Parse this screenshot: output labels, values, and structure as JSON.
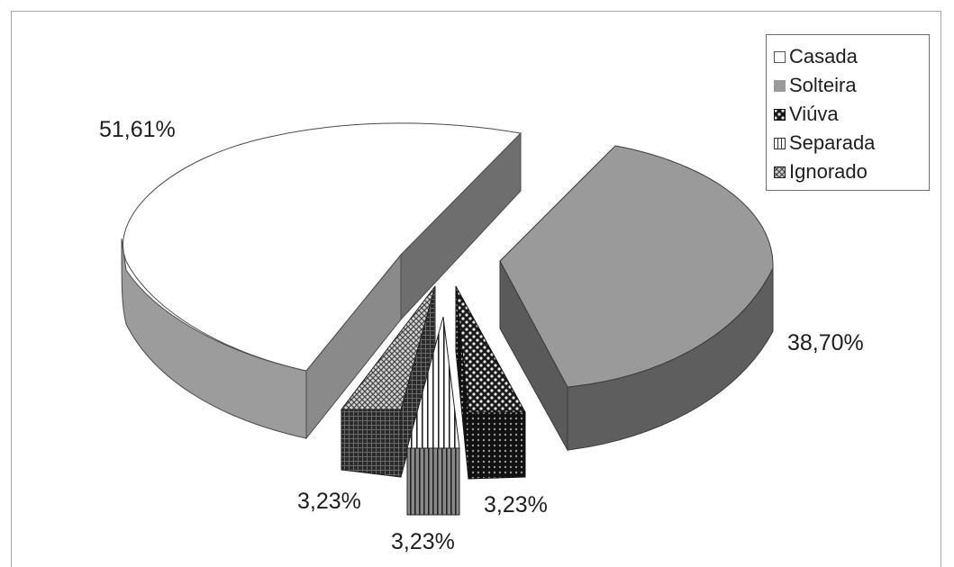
{
  "chart_data": {
    "type": "pie",
    "title": "",
    "slices": [
      {
        "label": "Casada",
        "value": 51.61,
        "value_label": "51,61%",
        "color": "#ffffff",
        "pattern": "solid-white"
      },
      {
        "label": "Solteira",
        "value": 38.7,
        "value_label": "38,70%",
        "color": "#9a9a9a",
        "pattern": "solid-gray"
      },
      {
        "label": "Viúva",
        "value": 3.23,
        "value_label": "3,23%",
        "color": "#2a2a2a",
        "pattern": "dark-checker"
      },
      {
        "label": "Separada",
        "value": 3.23,
        "value_label": "3,23%",
        "color": "#ffffff",
        "pattern": "vertical-lines"
      },
      {
        "label": "Ignorado",
        "value": 3.23,
        "value_label": "3,23%",
        "color": "#555555",
        "pattern": "dense-grid"
      }
    ],
    "legend_position": "top-right",
    "style": "3d-exploded"
  }
}
